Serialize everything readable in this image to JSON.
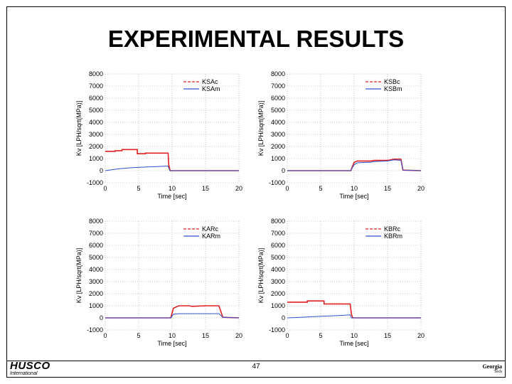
{
  "slide": {
    "title": "EXPERIMENTAL RESULTS",
    "page_number": "47",
    "logo_left": {
      "brand": "HUSCO",
      "sub": "International"
    },
    "logo_right": {
      "line1": "Georgia",
      "line2": "Tech"
    }
  },
  "colors": {
    "commanded": "#e02020",
    "measured": "#3050d0",
    "grid": "#9a9a9a"
  },
  "chart_data": [
    {
      "type": "line",
      "title": "",
      "xlabel": "Time [sec]",
      "ylabel": "Kv [LPH/sqrt(MPa)]",
      "xlim": [
        0,
        20
      ],
      "ylim": [
        -1000,
        8000
      ],
      "xticks": [
        0,
        5,
        10,
        15,
        20
      ],
      "yticks": [
        -1000,
        0,
        1000,
        2000,
        3000,
        4000,
        5000,
        6000,
        7000,
        8000
      ],
      "legend_position": "top-right",
      "series": [
        {
          "name": "KSAc",
          "style": "dashed",
          "color": "#e02020",
          "x": [
            0,
            1.5,
            1.5,
            2.5,
            2.5,
            4.8,
            4.8,
            6,
            6,
            9.4,
            9.5,
            9.7,
            20
          ],
          "y": [
            1600,
            1600,
            1650,
            1650,
            1750,
            1750,
            1400,
            1400,
            1450,
            1450,
            500,
            0,
            0
          ]
        },
        {
          "name": "KSAm",
          "style": "solid",
          "color": "#3050d0",
          "x": [
            0,
            2,
            4,
            6,
            8,
            9.4,
            9.5,
            9.7,
            20
          ],
          "y": [
            0,
            150,
            250,
            300,
            350,
            380,
            200,
            0,
            0
          ]
        }
      ]
    },
    {
      "type": "line",
      "title": "",
      "xlabel": "Time [sec]",
      "ylabel": "Kv [LPH/sqrt(MPa)]",
      "xlim": [
        0,
        20
      ],
      "ylim": [
        -1000,
        8000
      ],
      "xticks": [
        0,
        5,
        10,
        15,
        20
      ],
      "yticks": [
        -1000,
        0,
        1000,
        2000,
        3000,
        4000,
        5000,
        6000,
        7000,
        8000
      ],
      "legend_position": "top-right",
      "series": [
        {
          "name": "KSBc",
          "style": "dashed",
          "color": "#e02020",
          "x": [
            0,
            9.5,
            10,
            10.5,
            12.5,
            13,
            15,
            16,
            17,
            17.3,
            20
          ],
          "y": [
            0,
            0,
            700,
            800,
            800,
            850,
            850,
            950,
            950,
            50,
            0
          ]
        },
        {
          "name": "KSBm",
          "style": "solid",
          "color": "#3050d0",
          "x": [
            0,
            9.5,
            10,
            10.5,
            12.5,
            13,
            15,
            16,
            17,
            17.3,
            20
          ],
          "y": [
            0,
            0,
            500,
            650,
            700,
            750,
            800,
            900,
            850,
            50,
            0
          ]
        }
      ]
    },
    {
      "type": "line",
      "title": "",
      "xlabel": "Time [sec]",
      "ylabel": "Kv [LPH/sqrt(MPa)]",
      "xlim": [
        0,
        20
      ],
      "ylim": [
        -1000,
        8000
      ],
      "xticks": [
        0,
        5,
        10,
        15,
        20
      ],
      "yticks": [
        -1000,
        0,
        1000,
        2000,
        3000,
        4000,
        5000,
        6000,
        7000,
        8000
      ],
      "legend_position": "top-right",
      "series": [
        {
          "name": "KARc",
          "style": "dashed",
          "color": "#e02020",
          "x": [
            0,
            9.8,
            10.2,
            11,
            12.5,
            13,
            15,
            17,
            17.6,
            20
          ],
          "y": [
            0,
            0,
            800,
            1000,
            1000,
            950,
            1000,
            1000,
            50,
            0
          ]
        },
        {
          "name": "KARm",
          "style": "solid",
          "color": "#3050d0",
          "x": [
            0,
            9.8,
            10.2,
            11,
            13,
            15,
            17,
            17.6,
            20
          ],
          "y": [
            0,
            0,
            300,
            350,
            350,
            350,
            350,
            50,
            0
          ]
        }
      ]
    },
    {
      "type": "line",
      "title": "",
      "xlabel": "Time [sec]",
      "ylabel": "Kv [LPH/sqrt(MPa)]",
      "xlim": [
        0,
        20
      ],
      "ylim": [
        -1000,
        8000
      ],
      "xticks": [
        0,
        5,
        10,
        15,
        20
      ],
      "yticks": [
        -1000,
        0,
        1000,
        2000,
        3000,
        4000,
        5000,
        6000,
        7000,
        8000
      ],
      "legend_position": "top-right",
      "series": [
        {
          "name": "KBRc",
          "style": "dashed",
          "color": "#e02020",
          "x": [
            0,
            3,
            3,
            5.5,
            5.5,
            9.4,
            9.6,
            9.8,
            20
          ],
          "y": [
            1300,
            1300,
            1400,
            1400,
            1150,
            1150,
            300,
            0,
            0
          ]
        },
        {
          "name": "KBRm",
          "style": "solid",
          "color": "#3050d0",
          "x": [
            0,
            2,
            4,
            6,
            8,
            9.4,
            9.6,
            20
          ],
          "y": [
            0,
            50,
            100,
            150,
            200,
            250,
            0,
            0
          ]
        }
      ]
    }
  ]
}
